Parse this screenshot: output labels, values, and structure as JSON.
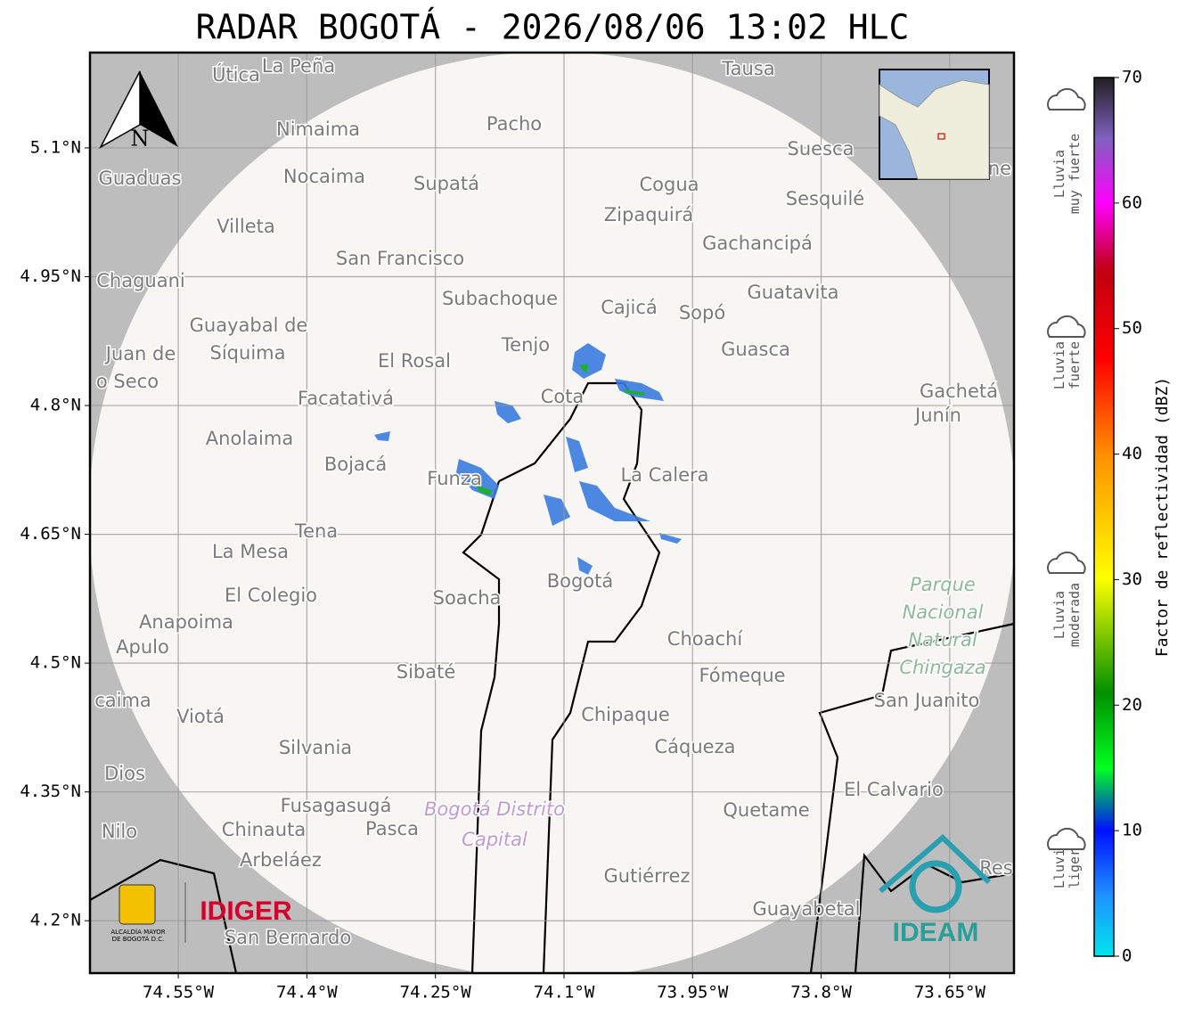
{
  "title": "RADAR BOGOTÁ - 2026/08/06 13:02 HLC",
  "map": {
    "lonlim": [
      -74.653,
      -73.575
    ],
    "latlim": [
      4.139,
      5.211
    ],
    "grid": true,
    "lonticks": [
      {
        "value": -74.55,
        "label": "74.55°W"
      },
      {
        "value": -74.4,
        "label": "74.4°W"
      },
      {
        "value": -74.25,
        "label": "74.25°W"
      },
      {
        "value": -74.1,
        "label": "74.1°W"
      },
      {
        "value": -73.95,
        "label": "73.95°W"
      },
      {
        "value": -73.8,
        "label": "73.8°W"
      },
      {
        "value": -73.65,
        "label": "73.65°W"
      }
    ],
    "latticks": [
      {
        "value": 5.1,
        "label": "5.1°N"
      },
      {
        "value": 4.95,
        "label": "4.95°N"
      },
      {
        "value": 4.8,
        "label": "4.8°N"
      },
      {
        "value": 4.65,
        "label": "4.65°N"
      },
      {
        "value": 4.5,
        "label": "4.5°N"
      },
      {
        "value": 4.35,
        "label": "4.35°N"
      },
      {
        "value": 4.2,
        "label": "4.2°N"
      }
    ],
    "north_label": "N",
    "places": [
      "Útica",
      "La Peña",
      "Tausa",
      "Pacho",
      "Nimaima",
      "Guaduas",
      "Nocaima",
      "Supatá",
      "Cogua",
      "Suesca",
      "Sesquilé",
      "Villeta",
      "Zipaquirá",
      "Gachancipá",
      "San Francisco",
      "Chaguani",
      "Subachoque",
      "Guatavita",
      "Cajicá",
      "Sopó",
      "Guayabal de",
      "Síquima",
      "Juan de",
      "o Seco",
      "Tenjo",
      "El Rosal",
      "Guasca",
      "Facatativá",
      "Cota",
      "Gachetá",
      "Junín",
      "Anolaima",
      "Bojacá",
      "La Calera",
      "Funza",
      "Tena",
      "La Mesa",
      "El Colegio",
      "Soacha",
      "Bogotá",
      "Anapoima",
      "Apulo",
      "Choachí",
      "Sibaté",
      "Fómeque",
      "San Juanito",
      "caima",
      "Viotá",
      "Chipaque",
      "Silvania",
      "Cáqueza",
      "Dios",
      "El Calvario",
      "Fusagasugá",
      "Quetame",
      "Nilo",
      "Chinauta",
      "Pasca",
      "Arbeláez",
      "Gutiérrez",
      "Guayabetal",
      "San Bernardo",
      "Res",
      "ne"
    ],
    "park_label": [
      "Parque",
      "Nacional",
      "Natural",
      "Chingaza"
    ],
    "district_label": [
      "Bogotá Distrito",
      "Capital"
    ]
  },
  "colorbar": {
    "label": "Factor de reflectividad (dBZ)",
    "lim": [
      0,
      70
    ],
    "ticks": [
      0,
      10,
      20,
      30,
      40,
      50,
      60,
      70
    ],
    "categories": [
      [
        "Lluvia",
        "ligera"
      ],
      [
        "Lluvia",
        "moderada"
      ],
      [
        "Lluvia",
        "fuerte"
      ],
      [
        "Lluvia",
        "muy fuerte"
      ]
    ]
  },
  "logos": {
    "alcaldia": [
      "ALCALDÍA MAYOR",
      "DE BOGOTÁ D.C."
    ],
    "idiger": "IDIGER",
    "ideam": "IDEAM"
  }
}
